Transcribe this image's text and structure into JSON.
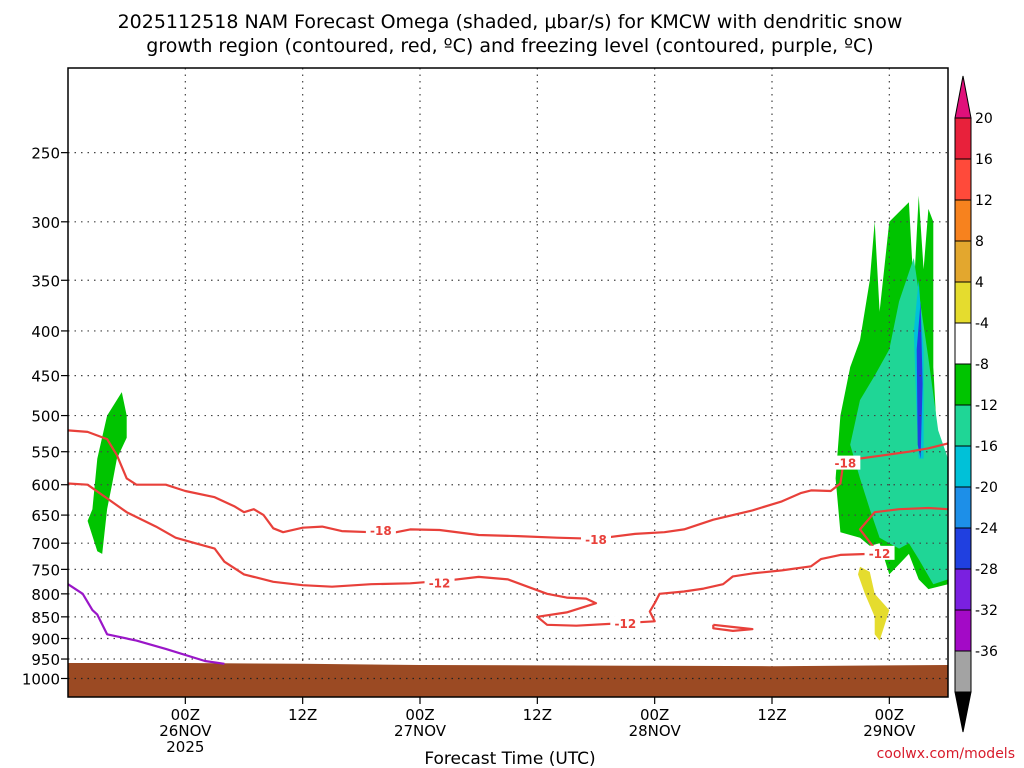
{
  "title_line1": "2025112518 NAM Forecast Omega (shaded, μbar/s) for KMCW with dendritic snow",
  "title_line2": "growth region (contoured, red, ºC) and freezing level (contoured, purple, ºC)",
  "credit": "coolwx.com/models",
  "chart_data": {
    "type": "time-height",
    "xlabel": "Forecast Time (UTC)",
    "ylabel": "",
    "y_log_pressure": true,
    "ylim": [
      1050,
      200
    ],
    "xlim": [
      -12,
      78
    ],
    "y_ticks": [
      250,
      300,
      350,
      400,
      450,
      500,
      550,
      600,
      650,
      700,
      750,
      800,
      850,
      900,
      950,
      1000
    ],
    "x_ticks": [
      {
        "hour": 0,
        "line1": "00Z",
        "line2": "26NOV",
        "line3": "2025"
      },
      {
        "hour": 12,
        "line1": "12Z",
        "line2": "",
        "line3": ""
      },
      {
        "hour": 24,
        "line1": "00Z",
        "line2": "27NOV",
        "line3": ""
      },
      {
        "hour": 36,
        "line1": "12Z",
        "line2": "",
        "line3": ""
      },
      {
        "hour": 48,
        "line1": "00Z",
        "line2": "28NOV",
        "line3": ""
      },
      {
        "hour": 60,
        "line1": "12Z",
        "line2": "",
        "line3": ""
      },
      {
        "hour": 72,
        "line1": "00Z",
        "line2": "29NOV",
        "line3": ""
      }
    ],
    "grid": true,
    "colorbar": {
      "labels": [
        "20",
        "16",
        "12",
        "8",
        "4",
        "-4",
        "-8",
        "-12",
        "-16",
        "-20",
        "-24",
        "-28",
        "-32",
        "-36"
      ],
      "colors": [
        "#e8213b",
        "#ff4a3a",
        "#f7821e",
        "#e3a72e",
        "#e5dc2e",
        "#ffffff",
        "#00c400",
        "#1fd696",
        "#00c1d8",
        "#1d8fe8",
        "#2040e0",
        "#7a20e0",
        "#a30ac6",
        "#a3a3a3"
      ],
      "top_arrow_color": "#e0107a",
      "bottom_arrow_color": "#000000"
    },
    "contour_labels": [
      "-18",
      "-18",
      "-18",
      "-12",
      "-12",
      "-12"
    ],
    "ground_color": "#9b4a23",
    "contour_color": "#e8403a",
    "freezing_color": "#9a16c8",
    "freezing_line": [
      {
        "h": -12,
        "p": 780
      },
      {
        "h": -10.5,
        "p": 800
      },
      {
        "h": -9.5,
        "p": 835
      },
      {
        "h": -9,
        "p": 845
      },
      {
        "h": -8,
        "p": 890
      },
      {
        "h": -5,
        "p": 905
      },
      {
        "h": -2,
        "p": 925
      },
      {
        "h": 2,
        "p": 955
      },
      {
        "h": 4,
        "p": 962
      }
    ],
    "ground_line": [
      {
        "h": -12,
        "p": 960
      },
      {
        "h": 0,
        "p": 960
      },
      {
        "h": 12,
        "p": 962
      },
      {
        "h": 24,
        "p": 965
      },
      {
        "h": 36,
        "p": 966
      },
      {
        "h": 48,
        "p": 967
      },
      {
        "h": 60,
        "p": 968
      },
      {
        "h": 72,
        "p": 966
      },
      {
        "h": 78,
        "p": 965
      }
    ],
    "contour_minus18": [
      {
        "h": -12,
        "p": 520
      },
      {
        "h": -10,
        "p": 522
      },
      {
        "h": -8,
        "p": 532
      },
      {
        "h": -7,
        "p": 555
      },
      {
        "h": -6,
        "p": 590
      },
      {
        "h": -5,
        "p": 600
      },
      {
        "h": -2,
        "p": 600
      },
      {
        "h": 0,
        "p": 610
      },
      {
        "h": 3,
        "p": 620
      },
      {
        "h": 5,
        "p": 635
      },
      {
        "h": 6,
        "p": 645
      },
      {
        "h": 7,
        "p": 640
      },
      {
        "h": 8,
        "p": 650
      },
      {
        "h": 9,
        "p": 673
      },
      {
        "h": 10,
        "p": 680
      },
      {
        "h": 12,
        "p": 672
      },
      {
        "h": 14,
        "p": 670
      },
      {
        "h": 16,
        "p": 678
      },
      {
        "h": 19,
        "p": 680
      },
      {
        "h": 21,
        "p": 682
      },
      {
        "h": 23,
        "p": 675
      },
      {
        "h": 26,
        "p": 676
      },
      {
        "h": 30,
        "p": 685
      },
      {
        "h": 34,
        "p": 687
      },
      {
        "h": 38,
        "p": 690
      },
      {
        "h": 42,
        "p": 692
      },
      {
        "h": 46,
        "p": 683
      },
      {
        "h": 49,
        "p": 680
      },
      {
        "h": 51,
        "p": 675
      },
      {
        "h": 54,
        "p": 658
      },
      {
        "h": 58,
        "p": 642
      },
      {
        "h": 61,
        "p": 627
      },
      {
        "h": 63,
        "p": 613
      },
      {
        "h": 64,
        "p": 609
      },
      {
        "h": 66,
        "p": 610
      },
      {
        "h": 67,
        "p": 598
      },
      {
        "h": 67.3,
        "p": 566
      },
      {
        "h": 68,
        "p": 562
      },
      {
        "h": 71,
        "p": 556
      },
      {
        "h": 74,
        "p": 550
      },
      {
        "h": 76,
        "p": 545
      },
      {
        "h": 78,
        "p": 538
      }
    ],
    "contour_minus12": [
      {
        "h": -12,
        "p": 598
      },
      {
        "h": -10,
        "p": 600
      },
      {
        "h": -8,
        "p": 622
      },
      {
        "h": -6,
        "p": 645
      },
      {
        "h": -3,
        "p": 670
      },
      {
        "h": -1,
        "p": 690
      },
      {
        "h": 1,
        "p": 700
      },
      {
        "h": 3,
        "p": 710
      },
      {
        "h": 4,
        "p": 735
      },
      {
        "h": 6,
        "p": 760
      },
      {
        "h": 9,
        "p": 775
      },
      {
        "h": 12,
        "p": 782
      },
      {
        "h": 15,
        "p": 785
      },
      {
        "h": 19,
        "p": 780
      },
      {
        "h": 23,
        "p": 778
      },
      {
        "h": 27,
        "p": 772
      },
      {
        "h": 30,
        "p": 765
      },
      {
        "h": 33,
        "p": 770
      },
      {
        "h": 35,
        "p": 785
      },
      {
        "h": 37,
        "p": 800
      },
      {
        "h": 39,
        "p": 808
      },
      {
        "h": 41,
        "p": 810
      },
      {
        "h": 42,
        "p": 820
      },
      {
        "h": 39,
        "p": 840
      },
      {
        "h": 36,
        "p": 850
      },
      {
        "h": 37,
        "p": 868
      },
      {
        "h": 40,
        "p": 870
      },
      {
        "h": 45,
        "p": 864
      },
      {
        "h": 48,
        "p": 860
      },
      {
        "h": 47.5,
        "p": 838
      },
      {
        "h": 48,
        "p": 820
      },
      {
        "h": 48.5,
        "p": 800
      },
      {
        "h": 51,
        "p": 795
      },
      {
        "h": 53,
        "p": 789
      },
      {
        "h": 55,
        "p": 780
      },
      {
        "h": 56,
        "p": 764
      },
      {
        "h": 58,
        "p": 758
      },
      {
        "h": 61,
        "p": 752
      },
      {
        "h": 64,
        "p": 744
      },
      {
        "h": 65,
        "p": 730
      },
      {
        "h": 67,
        "p": 722
      },
      {
        "h": 70,
        "p": 720
      },
      {
        "h": 70.5,
        "p": 710
      },
      {
        "h": 69,
        "p": 675
      },
      {
        "h": 70.5,
        "p": 645
      },
      {
        "h": 73,
        "p": 640
      },
      {
        "h": 76,
        "p": 638
      },
      {
        "h": 78,
        "p": 640
      }
    ],
    "contour_minus12_loop": [
      {
        "h": 54,
        "p": 868
      },
      {
        "h": 56,
        "p": 873
      },
      {
        "h": 58,
        "p": 878
      },
      {
        "h": 56,
        "p": 882
      },
      {
        "h": 54,
        "p": 876
      },
      {
        "h": 54,
        "p": 868
      }
    ],
    "omega_regions": [
      {
        "value": -8,
        "points": [
          [
            -9.5,
            640
          ],
          [
            -9,
            560
          ],
          [
            -8,
            500
          ],
          [
            -6.5,
            470
          ],
          [
            -6,
            500
          ],
          [
            -6,
            530
          ],
          [
            -7,
            560
          ],
          [
            -7.5,
            600
          ],
          [
            -8,
            640
          ],
          [
            -8.5,
            720
          ],
          [
            -9,
            715
          ],
          [
            -10,
            660
          ],
          [
            -9.5,
            640
          ]
        ]
      },
      {
        "value": -8,
        "points": [
          [
            67,
            680
          ],
          [
            66.5,
            590
          ],
          [
            67,
            500
          ],
          [
            68,
            440
          ],
          [
            69,
            410
          ],
          [
            70,
            350
          ],
          [
            70.5,
            300
          ],
          [
            71,
            380
          ],
          [
            72,
            300
          ],
          [
            74,
            285
          ],
          [
            74.5,
            360
          ],
          [
            75,
            280
          ],
          [
            75.5,
            340
          ],
          [
            76,
            290
          ],
          [
            76.5,
            300
          ],
          [
            76.5,
            440
          ],
          [
            77,
            560
          ],
          [
            77.5,
            620
          ],
          [
            78,
            640
          ],
          [
            78,
            780
          ],
          [
            76,
            790
          ],
          [
            75,
            770
          ],
          [
            74,
            720
          ],
          [
            73,
            740
          ],
          [
            72,
            760
          ],
          [
            71,
            700
          ],
          [
            70,
            705
          ],
          [
            69,
            690
          ],
          [
            67,
            680
          ]
        ]
      },
      {
        "value": -12,
        "points": [
          [
            68,
            540
          ],
          [
            69,
            480
          ],
          [
            70.5,
            450
          ],
          [
            72,
            420
          ],
          [
            73,
            370
          ],
          [
            74.5,
            330
          ],
          [
            76,
            430
          ],
          [
            77,
            520
          ],
          [
            78,
            560
          ],
          [
            78,
            770
          ],
          [
            76.5,
            780
          ],
          [
            75,
            730
          ],
          [
            74,
            700
          ],
          [
            73,
            710
          ],
          [
            72,
            700
          ],
          [
            71,
            690
          ],
          [
            70,
            640
          ],
          [
            69,
            590
          ],
          [
            68,
            540
          ]
        ]
      },
      {
        "value": -16,
        "points": [
          [
            74.5,
            400
          ],
          [
            75,
            350
          ],
          [
            75.5,
            420
          ],
          [
            75.5,
            560
          ],
          [
            75,
            560
          ],
          [
            74.8,
            500
          ],
          [
            74.5,
            400
          ]
        ]
      },
      {
        "value": -24,
        "points": [
          [
            74.8,
            420
          ],
          [
            75.2,
            370
          ],
          [
            75.4,
            460
          ],
          [
            75.2,
            560
          ],
          [
            74.9,
            540
          ],
          [
            74.8,
            420
          ]
        ]
      },
      {
        "value": 4,
        "points": [
          [
            69,
            745
          ],
          [
            70,
            755
          ],
          [
            70.5,
            800
          ],
          [
            72,
            835
          ],
          [
            71.5,
            870
          ],
          [
            71,
            905
          ],
          [
            70.5,
            890
          ],
          [
            70.5,
            850
          ],
          [
            69.5,
            800
          ],
          [
            68.8,
            760
          ],
          [
            69,
            745
          ]
        ]
      }
    ]
  }
}
